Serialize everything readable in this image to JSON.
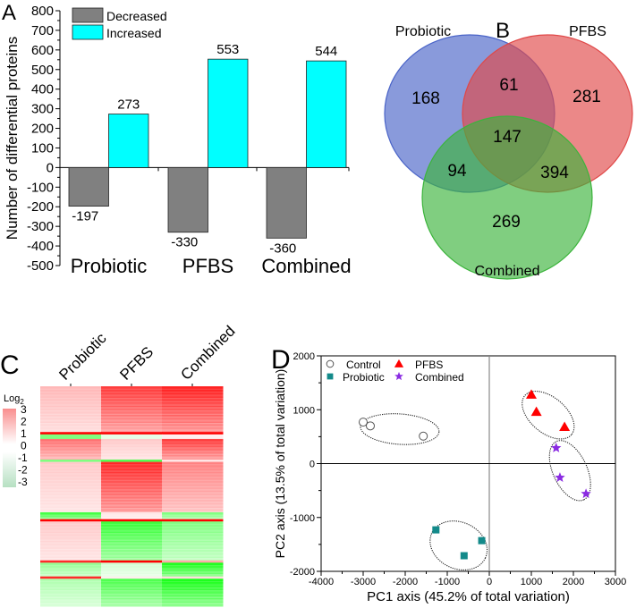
{
  "chart_data": [
    {
      "panel": "A",
      "type": "bar",
      "title": "",
      "xlabel": "",
      "ylabel": "Number of differential proteins",
      "ylim": [
        -500,
        800
      ],
      "yticks": [
        800,
        700,
        600,
        500,
        400,
        300,
        200,
        100,
        0,
        -100,
        -200,
        -300,
        -400,
        -500
      ],
      "categories": [
        "Probiotic",
        "PFBS",
        "Combined"
      ],
      "series": [
        {
          "name": "Decreased",
          "color": "#808080",
          "values": [
            -197,
            -330,
            -360
          ]
        },
        {
          "name": "Increased",
          "color": "#00ffff",
          "values": [
            273,
            553,
            544
          ]
        }
      ],
      "legend": {
        "position": "top-left",
        "entries": [
          "Decreased",
          "Increased"
        ]
      },
      "data_labels": true,
      "grid": false
    },
    {
      "panel": "B",
      "type": "venn",
      "sets": [
        {
          "name": "Probiotic",
          "color": "#4a64c8"
        },
        {
          "name": "PFBS",
          "color": "#e04848"
        },
        {
          "name": "Combined",
          "color": "#3cb43c"
        }
      ],
      "regions": [
        {
          "sets": [
            "Probiotic"
          ],
          "value": 168
        },
        {
          "sets": [
            "PFBS"
          ],
          "value": 281
        },
        {
          "sets": [
            "Combined"
          ],
          "value": 269
        },
        {
          "sets": [
            "Probiotic",
            "PFBS"
          ],
          "value": 61
        },
        {
          "sets": [
            "Probiotic",
            "Combined"
          ],
          "value": 94
        },
        {
          "sets": [
            "PFBS",
            "Combined"
          ],
          "value": 394
        },
        {
          "sets": [
            "Probiotic",
            "PFBS",
            "Combined"
          ],
          "value": 147
        }
      ]
    },
    {
      "panel": "C",
      "type": "heatmap",
      "columns": [
        "Probiotic",
        "PFBS",
        "Combined"
      ],
      "colorbar": {
        "title": "Log2",
        "ticks": [
          3,
          2,
          1,
          0,
          -1,
          -2,
          -3
        ],
        "high_color": "#ff0000",
        "mid_color": "#ffffff",
        "low_color": "#00ff00"
      },
      "clusters": [
        {
          "rows": 40,
          "values": [
            0.8,
            2.2,
            2.5
          ]
        },
        {
          "rows": 2,
          "values": [
            3,
            3,
            3
          ]
        },
        {
          "rows": 4,
          "values": [
            -1.5,
            -0.3,
            0.2
          ]
        },
        {
          "rows": 18,
          "values": [
            1.6,
            0.6,
            2.2
          ]
        },
        {
          "rows": 2,
          "values": [
            -1.5,
            -2,
            0.3
          ]
        },
        {
          "rows": 44,
          "values": [
            0.6,
            2.4,
            1.4
          ]
        },
        {
          "rows": 6,
          "values": [
            -2.2,
            0.3,
            -1.5
          ]
        },
        {
          "rows": 2,
          "values": [
            3,
            3,
            3
          ]
        },
        {
          "rows": 34,
          "values": [
            0.6,
            -2.2,
            -1.4
          ]
        },
        {
          "rows": 2,
          "values": [
            2.5,
            3,
            1
          ]
        },
        {
          "rows": 12,
          "values": [
            -1.2,
            -0.5,
            -2.6
          ]
        },
        {
          "rows": 2,
          "values": [
            2.5,
            0.2,
            0.4
          ]
        },
        {
          "rows": 24,
          "values": [
            -0.9,
            -2,
            -2.6
          ]
        }
      ]
    },
    {
      "panel": "D",
      "type": "scatter",
      "xlabel": "PC1 axis (45.2% of total variation)",
      "ylabel": "PC2 axis (13.5% of total variation)",
      "xlim": [
        -4000,
        3000
      ],
      "ylim": [
        -2000,
        2000
      ],
      "xticks": [
        -4000,
        -3000,
        -2000,
        -1000,
        0,
        1000,
        2000,
        3000
      ],
      "yticks": [
        2000,
        1000,
        0,
        -1000,
        -2000
      ],
      "legend": {
        "position": "top-left"
      },
      "series": [
        {
          "name": "Control",
          "marker": "open-circle",
          "color": "#555555",
          "points": [
            [
              -3000,
              770
            ],
            [
              -2830,
              700
            ],
            [
              -1570,
              510
            ]
          ]
        },
        {
          "name": "Probiotic",
          "marker": "square",
          "color": "#138a8a",
          "points": [
            [
              -1270,
              -1230
            ],
            [
              -600,
              -1710
            ],
            [
              -180,
              -1430
            ]
          ]
        },
        {
          "name": "PFBS",
          "marker": "triangle",
          "color": "#ff0000",
          "points": [
            [
              1000,
              1280
            ],
            [
              1120,
              960
            ],
            [
              1790,
              680
            ]
          ]
        },
        {
          "name": "Combined",
          "marker": "star",
          "color": "#8a2be2",
          "points": [
            [
              1590,
              290
            ],
            [
              1680,
              -260
            ],
            [
              2300,
              -560
            ]
          ]
        }
      ]
    }
  ],
  "panel_labels": {
    "a": "A",
    "b": "B",
    "c": "C",
    "d": "D"
  },
  "colorbar_label_main": "Log",
  "colorbar_label_sub": "2"
}
